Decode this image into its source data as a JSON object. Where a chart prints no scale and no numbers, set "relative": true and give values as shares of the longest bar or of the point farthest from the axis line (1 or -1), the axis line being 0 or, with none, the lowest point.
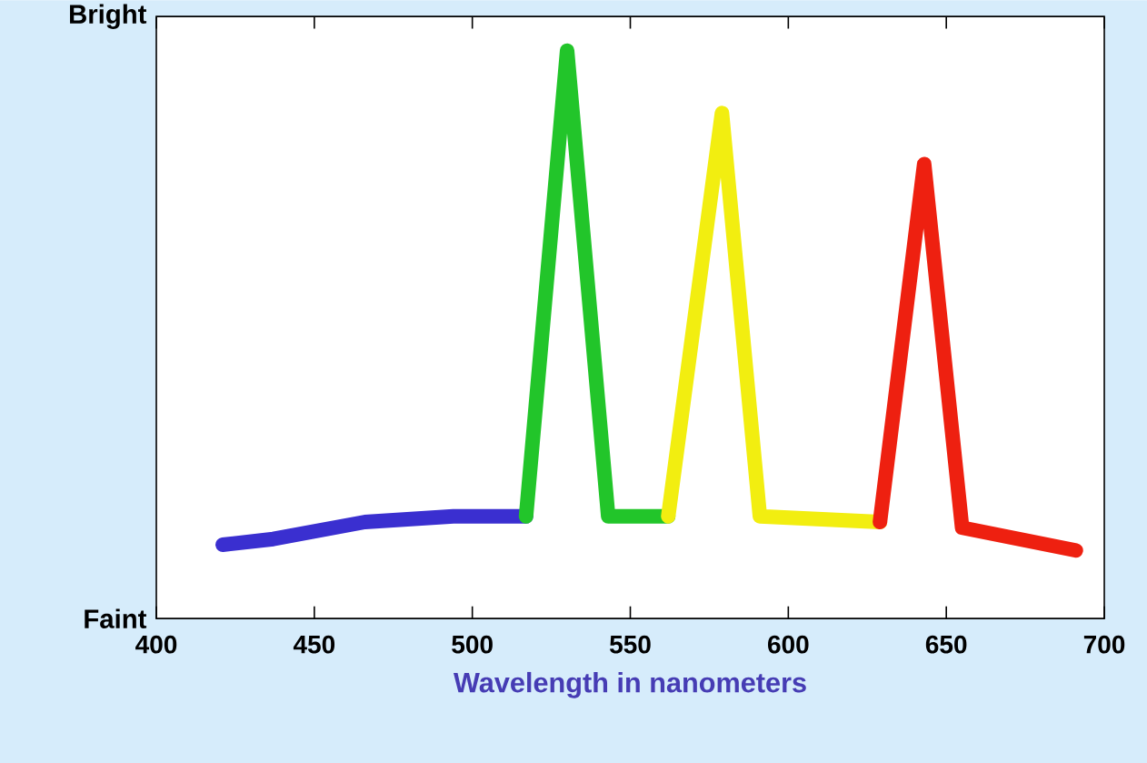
{
  "chart_data": {
    "type": "line",
    "relative": true,
    "xlabel": "Wavelength in nanometers",
    "xlim": [
      400,
      700
    ],
    "xticks": [
      400,
      450,
      500,
      550,
      600,
      650,
      700
    ],
    "annotations": [
      "Bright",
      "Faint"
    ],
    "series": [
      {
        "color": "#3a2fd0",
        "x": [
          421,
          437,
          466,
          494,
          517
        ],
        "values": [
          0.13,
          0.14,
          0.17,
          0.18,
          0.18
        ]
      },
      {
        "color": "#22c52a",
        "x": [
          517,
          530,
          543,
          562
        ],
        "values": [
          0.18,
          1,
          0.18,
          0.18
        ]
      },
      {
        "color": "#f2ee10",
        "x": [
          562,
          579,
          591,
          629
        ],
        "values": [
          0.18,
          0.89,
          0.18,
          0.17
        ]
      },
      {
        "color": "#ee2010",
        "x": [
          629,
          643,
          655,
          691
        ],
        "values": [
          0.17,
          0.8,
          0.16,
          0.12
        ]
      }
    ],
    "marker": "none",
    "line_style": "solid"
  }
}
